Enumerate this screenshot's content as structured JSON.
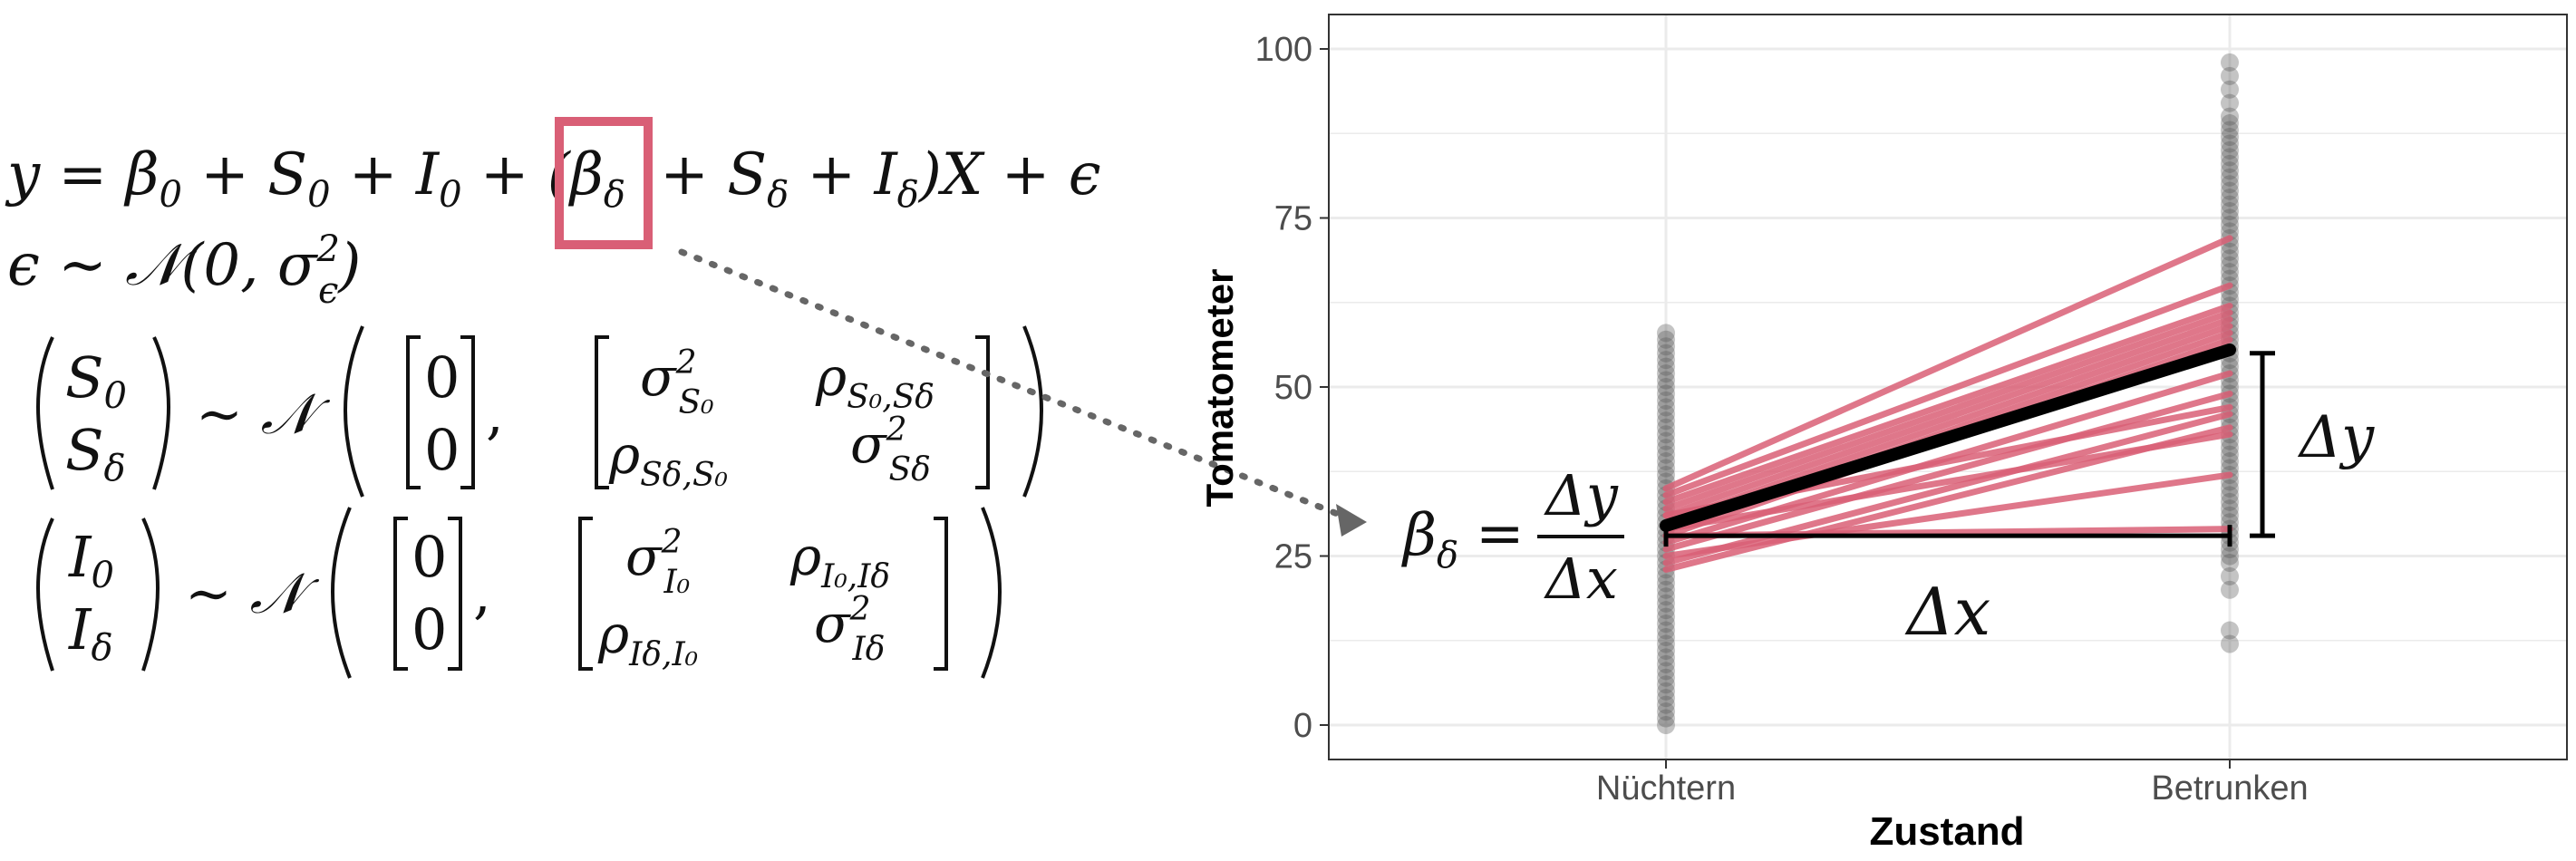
{
  "equations": {
    "line1": {
      "lhs": "y = β",
      "beta0_sub": "0",
      "plus1": " + S",
      "s0_sub": "0",
      "plus2": " + I",
      "i0_sub": "0",
      "plus3": " + ",
      "open_paren": "(",
      "beta_delta": "β",
      "beta_delta_sub": "δ",
      "plus4": " + S",
      "sdelta_sub": "δ",
      "plus5": " + I",
      "idelta_sub": "δ",
      "tail": ")X + ϵ"
    },
    "line2": {
      "lhs": "ϵ ∼ 𝒩(0, σ",
      "sup": "2",
      "sub": "ϵ",
      "close": ")"
    },
    "matrix_S": {
      "vec_top": "S",
      "vec_top_sub": "0",
      "vec_bottom": "S",
      "vec_bottom_sub": "δ",
      "sim": "∼ 𝒩",
      "mean_top": "0",
      "mean_bottom": "0",
      "comma": ",",
      "cov_11": "σ",
      "cov_11_sup": "2",
      "cov_11_sub": "S₀",
      "cov_12": "ρ",
      "cov_12_sub": "S₀,Sδ",
      "cov_21": "ρ",
      "cov_21_sub": "Sδ,S₀",
      "cov_22": "σ",
      "cov_22_sup": "2",
      "cov_22_sub": "Sδ"
    },
    "matrix_I": {
      "vec_top": "I",
      "vec_top_sub": "0",
      "vec_bottom": "I",
      "vec_bottom_sub": "δ",
      "sim": "∼ 𝒩",
      "mean_top": "0",
      "mean_bottom": "0",
      "comma": ",",
      "cov_11": "σ",
      "cov_11_sup": "2",
      "cov_11_sub": "I₀",
      "cov_12": "ρ",
      "cov_12_sub": "I₀,Iδ",
      "cov_21": "ρ",
      "cov_21_sub": "Iδ,I₀",
      "cov_22": "σ",
      "cov_22_sup": "2",
      "cov_22_sub": "Iδ"
    }
  },
  "annotations": {
    "slope_formula": {
      "lhs": "β",
      "lhs_sub": "δ",
      "equals": "=",
      "numerator": "Δy",
      "denominator": "Δx"
    },
    "delta_x": "Δx",
    "delta_y": "Δy"
  },
  "colors": {
    "highlight": "#d95f76",
    "subject_lines": "#d95f76",
    "mean_line": "#000000",
    "points": "#555555",
    "grid": "#ebebeb",
    "axis_text": "#4d4d4d",
    "arrow": "#666666"
  },
  "chart_data": {
    "type": "line",
    "categories": [
      "Nüchtern",
      "Betrunken"
    ],
    "xlabel": "Zustand",
    "ylabel": "Tomatometer",
    "ylim": [
      0,
      100
    ],
    "yticks": [
      0,
      25,
      50,
      75,
      100
    ],
    "grid": true,
    "subject_series": [
      {
        "values": [
          35,
          72
        ]
      },
      {
        "values": [
          34,
          65
        ]
      },
      {
        "values": [
          33,
          62
        ]
      },
      {
        "values": [
          32,
          61
        ]
      },
      {
        "values": [
          31,
          60
        ]
      },
      {
        "values": [
          30,
          59
        ]
      },
      {
        "values": [
          29,
          58
        ]
      },
      {
        "values": [
          28,
          57
        ]
      },
      {
        "values": [
          27,
          52
        ]
      },
      {
        "values": [
          26,
          49
        ]
      },
      {
        "values": [
          24,
          46
        ]
      },
      {
        "values": [
          23,
          44
        ]
      },
      {
        "values": [
          29,
          43
        ]
      },
      {
        "values": [
          31,
          47
        ]
      },
      {
        "values": [
          25,
          37
        ]
      },
      {
        "values": [
          28,
          29
        ]
      }
    ],
    "mean_series": {
      "values": [
        29.5,
        55.5
      ]
    },
    "scatter": {
      "Nüchtern": [
        0,
        1,
        2,
        3,
        4,
        5,
        6,
        7,
        8,
        9,
        10,
        11,
        12,
        13,
        14,
        15,
        16,
        17,
        18,
        19,
        20,
        21,
        22,
        23,
        24,
        25,
        26,
        27,
        28,
        29,
        30,
        31,
        32,
        33,
        34,
        35,
        36,
        37,
        38,
        39,
        40,
        41,
        42,
        43,
        44,
        45,
        46,
        47,
        48,
        49,
        50,
        51,
        52,
        53,
        54,
        55,
        56,
        57,
        58
      ],
      "Betrunken": [
        12,
        14,
        20,
        22,
        24,
        25,
        26,
        27,
        28,
        29,
        30,
        31,
        32,
        33,
        34,
        35,
        36,
        37,
        38,
        39,
        40,
        41,
        42,
        43,
        44,
        45,
        46,
        47,
        48,
        49,
        50,
        51,
        52,
        53,
        54,
        55,
        56,
        57,
        58,
        59,
        60,
        61,
        62,
        63,
        64,
        65,
        66,
        67,
        68,
        69,
        70,
        71,
        72,
        73,
        74,
        75,
        76,
        77,
        78,
        79,
        80,
        81,
        82,
        83,
        84,
        85,
        86,
        87,
        88,
        89,
        90,
        92,
        94,
        96,
        98
      ]
    },
    "delta_x_bracket_y": 28,
    "delta_y_bracket": [
      28,
      55
    ]
  }
}
